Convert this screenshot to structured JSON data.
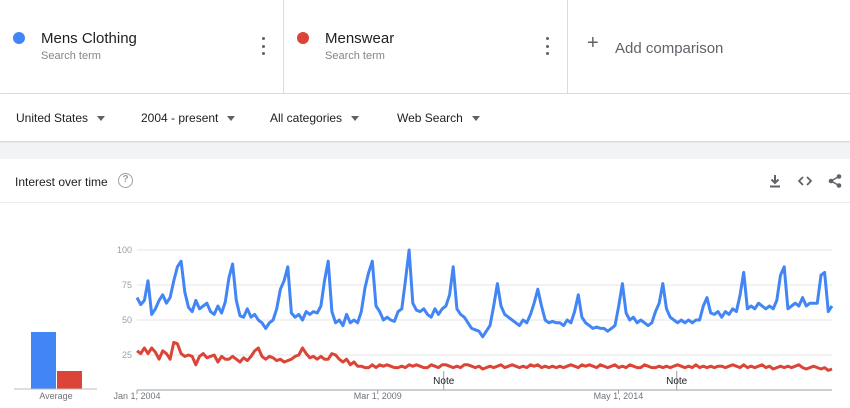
{
  "terms": [
    {
      "name": "Mens Clothing",
      "sub": "Search term",
      "color": "#4285f4"
    },
    {
      "name": "Menswear",
      "sub": "Search term",
      "color": "#db4437"
    }
  ],
  "add_comparison": "Add comparison",
  "filters": {
    "region": "United States",
    "time": "2004 - present",
    "category": "All categories",
    "search_type": "Web Search"
  },
  "card": {
    "title": "Interest over time",
    "help_glyph": "?",
    "icons": [
      "download-icon",
      "embed-icon",
      "share-icon"
    ]
  },
  "chart_data": {
    "type": "line",
    "x_start": "2004-01",
    "x_end": "2018-12",
    "x_tick_labels": [
      "Jan 1, 2004",
      "Mar 1, 2009",
      "May 1, 2014"
    ],
    "x_tick_dates": [
      "2004-01",
      "2009-03",
      "2014-05"
    ],
    "y_ticks": [
      25,
      50,
      75,
      100
    ],
    "ylim": [
      0,
      100
    ],
    "grid": true,
    "series": [
      {
        "name": "Mens Clothing",
        "color": "#4285f4",
        "values": [
          66,
          61,
          64,
          78,
          54,
          58,
          64,
          68,
          62,
          66,
          78,
          88,
          92,
          70,
          59,
          56,
          64,
          58,
          60,
          62,
          56,
          54,
          60,
          55,
          63,
          80,
          90,
          64,
          53,
          52,
          58,
          52,
          54,
          50,
          48,
          44,
          48,
          50,
          58,
          72,
          78,
          88,
          55,
          52,
          54,
          50,
          56,
          54,
          56,
          55,
          60,
          78,
          92,
          56,
          48,
          50,
          46,
          54,
          48,
          50,
          48,
          56,
          73,
          84,
          92,
          60,
          56,
          50,
          52,
          50,
          49,
          56,
          58,
          78,
          100,
          62,
          57,
          56,
          58,
          54,
          52,
          58,
          54,
          58,
          60,
          68,
          88,
          58,
          54,
          52,
          48,
          44,
          43,
          42,
          38,
          42,
          46,
          60,
          76,
          60,
          54,
          52,
          50,
          48,
          46,
          50,
          48,
          54,
          62,
          72,
          60,
          50,
          48,
          49,
          48,
          48,
          46,
          50,
          48,
          56,
          68,
          52,
          48,
          46,
          44,
          45,
          44,
          44,
          42,
          44,
          46,
          60,
          76,
          55,
          50,
          52,
          48,
          50,
          48,
          46,
          48,
          56,
          62,
          76,
          58,
          52,
          50,
          48,
          50,
          48,
          50,
          48,
          50,
          50,
          60,
          66,
          55,
          54,
          56,
          52,
          56,
          54,
          58,
          56,
          68,
          84,
          58,
          60,
          58,
          62,
          60,
          58,
          60,
          58,
          64,
          82,
          88,
          58,
          60,
          62,
          60,
          66,
          60,
          62,
          62,
          62,
          82,
          84,
          56,
          60
        ]
      },
      {
        "name": "Menswear",
        "color": "#db4437",
        "values": [
          28,
          26,
          30,
          26,
          30,
          27,
          22,
          28,
          26,
          22,
          34,
          33,
          26,
          24,
          25,
          24,
          18,
          24,
          26,
          23,
          24,
          25,
          20,
          24,
          22,
          22,
          24,
          22,
          20,
          23,
          21,
          24,
          28,
          30,
          24,
          22,
          24,
          23,
          21,
          22,
          20,
          21,
          22,
          24,
          25,
          30,
          26,
          23,
          24,
          22,
          24,
          22,
          22,
          26,
          25,
          22,
          20,
          22,
          18,
          20,
          17,
          17,
          16,
          16,
          18,
          16,
          18,
          17,
          18,
          17,
          16,
          16,
          17,
          16,
          18,
          17,
          18,
          17,
          16,
          16,
          18,
          17,
          16,
          18,
          18,
          17,
          16,
          17,
          16,
          18,
          18,
          17,
          16,
          17,
          15,
          16,
          17,
          16,
          17,
          18,
          16,
          17,
          18,
          17,
          16,
          17,
          16,
          18,
          17,
          18,
          16,
          17,
          16,
          17,
          16,
          17,
          16,
          17,
          18,
          17,
          16,
          18,
          17,
          18,
          17,
          16,
          18,
          17,
          16,
          17,
          18,
          16,
          17,
          16,
          18,
          17,
          16,
          16,
          18,
          17,
          16,
          16,
          17,
          16,
          17,
          16,
          17,
          18,
          17,
          16,
          17,
          16,
          18,
          16,
          17,
          16,
          17,
          16,
          17,
          17,
          16,
          17,
          18,
          17,
          16,
          18,
          16,
          17,
          16,
          17,
          18,
          16,
          17,
          15,
          16,
          17,
          16,
          17,
          16,
          17,
          18,
          16,
          15,
          16,
          17,
          16,
          15,
          16,
          14,
          15
        ],
        "avg": 18
      }
    ],
    "averages": {
      "label": "Average",
      "values": [
        57,
        18
      ],
      "colors": [
        "#4285f4",
        "#db4437"
      ]
    },
    "annotations": [
      {
        "label": "Note",
        "date": "2010-08"
      },
      {
        "label": "Note",
        "date": "2015-08"
      }
    ]
  }
}
